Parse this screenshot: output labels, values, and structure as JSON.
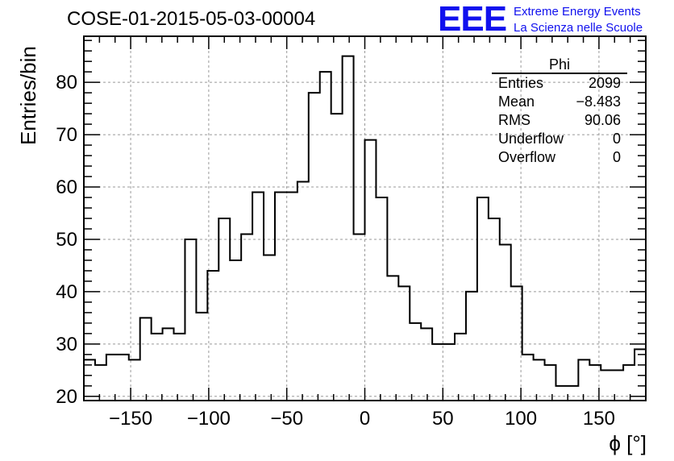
{
  "header": {
    "title": "COSE-01-2015-05-03-00004",
    "logo_text": "EEE",
    "logo_line1": "Extreme Energy Events",
    "logo_line2": "La Scienza nelle Scuole"
  },
  "stats": {
    "name": "Phi",
    "rows": [
      {
        "label": "Entries",
        "value": "2099"
      },
      {
        "label": "Mean",
        "value": "−8.483"
      },
      {
        "label": "RMS",
        "value": "90.06"
      },
      {
        "label": "Underflow",
        "value": "0"
      },
      {
        "label": "Overflow",
        "value": "0"
      }
    ]
  },
  "colors": {
    "line": "#000000",
    "grid": "#999999",
    "logo": "#1010ee"
  },
  "chart_data": {
    "type": "histogram",
    "xlabel": "ϕ [°]",
    "ylabel": "Entries/bin",
    "xlim": [
      -180,
      180
    ],
    "ylim": [
      19.2,
      88.8
    ],
    "grid": true,
    "x_ticks": [
      -150,
      -100,
      -50,
      0,
      50,
      100,
      150
    ],
    "y_ticks": [
      20,
      30,
      40,
      50,
      60,
      70,
      80
    ],
    "bin_edges": [
      -180,
      -172.8,
      -165.6,
      -158.4,
      -151.2,
      -144,
      -136.8,
      -129.6,
      -122.4,
      -115.2,
      -108,
      -100.8,
      -93.6,
      -86.4,
      -79.2,
      -72,
      -64.8,
      -57.6,
      -50.4,
      -43.2,
      -36,
      -28.8,
      -21.6,
      -14.4,
      -7.2,
      0,
      7.2,
      14.4,
      21.6,
      28.8,
      36,
      43.2,
      50.4,
      57.6,
      64.8,
      72,
      79.2,
      86.4,
      93.6,
      100.8,
      108,
      115.2,
      122.4,
      129.6,
      136.8,
      144,
      151.2,
      158.4,
      165.6,
      172.8,
      180
    ],
    "values": [
      27,
      26,
      28,
      28,
      27,
      35,
      32,
      33,
      32,
      50,
      36,
      44,
      54,
      46,
      51,
      59,
      47,
      59,
      59,
      61,
      78,
      82,
      74,
      85,
      51,
      69,
      58,
      43,
      41,
      34,
      33,
      30,
      30,
      32,
      40,
      58,
      54,
      49,
      41,
      28,
      27,
      26,
      22,
      22,
      27,
      26,
      25,
      25,
      26,
      29
    ]
  }
}
